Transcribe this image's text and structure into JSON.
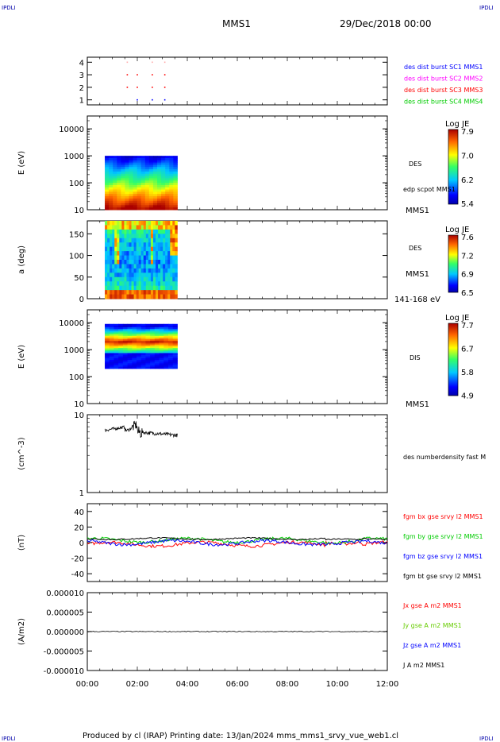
{
  "header": {
    "corner_tl": "IPDLI",
    "corner_tr": "IPDLI",
    "corner_bl": "IPDLI",
    "corner_br": "IPDLI",
    "mission": "MMS1",
    "date": "29/Dec/2018 00:00"
  },
  "footer": {
    "text": "Produced by cl (IRAP)   Printing date: 13/Jan/2024   mms_mms1_srvy_vue_web1.cl"
  },
  "colors": {
    "panel_border": "#000000",
    "blue_label": "#0000ff",
    "magenta_label": "#ff00ff",
    "red_label": "#ff0000",
    "green_label": "#00cc00"
  },
  "chart_data": [
    {
      "type": "scatter",
      "yticks": [
        "4",
        "3",
        "2",
        "1"
      ],
      "ylim": [
        0.6,
        4.4
      ],
      "legend": [
        {
          "text": "des dist burst SC1 MMS1",
          "color": "#0000ff"
        },
        {
          "text": "des dist burst SC2 MMS2",
          "color": "#ff00ff"
        },
        {
          "text": "des dist burst SC3 MMS3",
          "color": "#ff0000"
        },
        {
          "text": "des dist burst SC4 MMS4",
          "color": "#00cc00"
        }
      ],
      "series": [
        {
          "name": "SC4",
          "y": 1,
          "x": [
            2.0,
            2.6,
            3.1
          ],
          "color": "#0000ff"
        },
        {
          "name": "SC3",
          "y": 2,
          "x": [
            1.6,
            2.0,
            2.6,
            3.1
          ],
          "color": "#ff0000"
        },
        {
          "name": "SC2",
          "y": 3,
          "x": [
            1.6,
            2.0,
            2.6,
            3.1
          ],
          "color": "#ff0000"
        },
        {
          "name": "SC1",
          "y": 4,
          "x": [
            1.6,
            2.6,
            3.1
          ],
          "color": "#ffaaaa"
        }
      ]
    },
    {
      "type": "heatmap",
      "ylabel": "E (eV)",
      "scale": "log",
      "yticks": [
        "10000",
        "1000",
        "100",
        "10"
      ],
      "ylim": [
        10,
        30000
      ],
      "t_range": [
        0.7,
        3.6
      ],
      "right_labels": [
        "DES",
        "edp scpot MMS1",
        "MMS1"
      ],
      "colorbar": {
        "title": "Log JE",
        "ticks": [
          "7.9",
          "7.0",
          "6.2",
          "5.4"
        ],
        "range": [
          5.4,
          8.0
        ]
      }
    },
    {
      "type": "heatmap",
      "ylabel": "a (deg)",
      "yticks": [
        "150",
        "100",
        "50",
        "0"
      ],
      "ylim": [
        0,
        180
      ],
      "t_range": [
        0.7,
        3.6
      ],
      "right_labels": [
        "DES",
        "MMS1",
        "141-168 eV"
      ],
      "colorbar": {
        "title": "Log JE",
        "ticks": [
          "7.6",
          "7.2",
          "6.9",
          "6.5"
        ],
        "range": [
          6.5,
          7.7
        ]
      }
    },
    {
      "type": "heatmap",
      "ylabel": "E (eV)",
      "scale": "log",
      "yticks": [
        "10000",
        "1000",
        "100",
        "10"
      ],
      "ylim": [
        10,
        30000
      ],
      "t_range": [
        0.7,
        3.6
      ],
      "right_labels": [
        "DIS",
        "MMS1"
      ],
      "colorbar": {
        "title": "Log JE",
        "ticks": [
          "7.7",
          "6.7",
          "5.8",
          "4.9"
        ],
        "range": [
          4.9,
          8.0
        ]
      }
    },
    {
      "type": "line",
      "ylabel": "(cm^-3)",
      "scale": "log",
      "yticks": [
        "10",
        "1"
      ],
      "ylim": [
        1,
        10
      ],
      "right_labels": [
        "des numberdensity fast M"
      ],
      "t_range": [
        0.7,
        3.6
      ],
      "values_approx": {
        "start": 6.3,
        "peak": 7.4,
        "min": 4.8,
        "end": 5.5
      }
    },
    {
      "type": "line",
      "ylabel": "(nT)",
      "yticks": [
        "40",
        "20",
        "0",
        "-20",
        "-40"
      ],
      "ylim": [
        -50,
        50
      ],
      "legend": [
        {
          "text": "fgm bx gse srvy l2 MMS1",
          "color": "#ff0000"
        },
        {
          "text": "fgm by gse srvy l2 MMS1",
          "color": "#00cc00"
        },
        {
          "text": "fgm bz gse srvy l2 MMS1",
          "color": "#0000ff"
        },
        {
          "text": "fgm bt gse srvy l2 MMS1",
          "color": "#000000"
        }
      ],
      "series": [
        {
          "name": "bx",
          "color": "#ff0000",
          "base": -2,
          "amp": 2.5
        },
        {
          "name": "by",
          "color": "#00cc00",
          "base": 3,
          "amp": 2.5
        },
        {
          "name": "bz",
          "color": "#0000ff",
          "base": 0,
          "amp": 2.5
        },
        {
          "name": "bt",
          "color": "#000000",
          "base": 5,
          "amp": 1.0
        }
      ]
    },
    {
      "type": "line",
      "ylabel": "(A/m2)",
      "yticks": [
        "0.000010",
        "0.000005",
        "0.000000",
        "-0.000005",
        "-0.000010"
      ],
      "ylim": [
        -1e-05,
        1e-05
      ],
      "legend": [
        {
          "text": "Jx gse A m2 MMS1",
          "color": "#ff0000"
        },
        {
          "text": "Jy gse A m2 MMS1",
          "color": "#66cc00"
        },
        {
          "text": "Jz gse A m2 MMS1",
          "color": "#0000ff"
        },
        {
          "text": "J A m2 MMS1",
          "color": "#000000"
        }
      ]
    }
  ],
  "time_axis": {
    "ticks": [
      "00:00",
      "02:00",
      "04:00",
      "06:00",
      "08:00",
      "10:00",
      "12:00"
    ],
    "range": [
      0,
      12
    ]
  }
}
